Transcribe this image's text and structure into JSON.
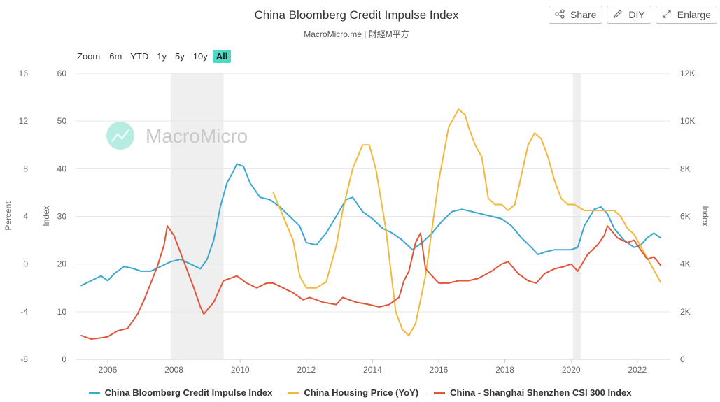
{
  "header": {
    "title": "China Bloomberg Credit Impulse Index",
    "subtitle": "MacroMicro.me | 財經M平方"
  },
  "buttons": {
    "share": "Share",
    "diy": "DIY",
    "enlarge": "Enlarge"
  },
  "zoom": {
    "label": "Zoom",
    "options": [
      "6m",
      "YTD",
      "1y",
      "5y",
      "10y",
      "All"
    ],
    "active": "All"
  },
  "watermark": "MacroMicro",
  "colors": {
    "credit": "#3aa8cf",
    "housing": "#f2b83b",
    "csi": "#e2553a",
    "recession": "#efefef",
    "watermark_icon": "#5ed6c0"
  },
  "chart_data": {
    "type": "line",
    "x_ticks": [
      "2006",
      "2008",
      "2010",
      "2012",
      "2014",
      "2016",
      "2018",
      "2020",
      "2022"
    ],
    "axes": {
      "percent": {
        "label": "Percent",
        "ticks": [
          "16",
          "12",
          "8",
          "4",
          "0",
          "-4",
          "-8"
        ],
        "range": [
          -8,
          16
        ]
      },
      "index_left": {
        "label": "Index",
        "ticks": [
          "60",
          "50",
          "40",
          "30",
          "20",
          "10",
          "0"
        ],
        "range": [
          0,
          60
        ]
      },
      "index_right": {
        "label": "Index",
        "ticks": [
          "12K",
          "10K",
          "8K",
          "6K",
          "4K",
          "2K",
          "0"
        ],
        "range": [
          0,
          12000
        ]
      }
    },
    "shaded_periods": [
      [
        2007.9,
        2009.5
      ],
      [
        2020.05,
        2020.3
      ]
    ],
    "series": [
      {
        "name": "China Bloomberg Credit Impulse Index",
        "axis": "index_left",
        "color": "#3aa8cf",
        "x": [
          2005.2,
          2005.5,
          2005.8,
          2006.0,
          2006.2,
          2006.5,
          2006.8,
          2007.0,
          2007.3,
          2007.6,
          2007.9,
          2008.2,
          2008.5,
          2008.8,
          2009.0,
          2009.2,
          2009.4,
          2009.6,
          2009.8,
          2009.9,
          2010.1,
          2010.3,
          2010.6,
          2010.9,
          2011.2,
          2011.5,
          2011.8,
          2012.0,
          2012.3,
          2012.6,
          2012.9,
          2013.2,
          2013.4,
          2013.7,
          2014.0,
          2014.3,
          2014.6,
          2014.9,
          2015.2,
          2015.5,
          2015.8,
          2016.1,
          2016.4,
          2016.7,
          2017.0,
          2017.3,
          2017.6,
          2017.9,
          2018.2,
          2018.5,
          2018.8,
          2019.0,
          2019.2,
          2019.5,
          2019.8,
          2020.0,
          2020.2,
          2020.4,
          2020.7,
          2020.9,
          2021.1,
          2021.3,
          2021.6,
          2021.9,
          2022.1,
          2022.3,
          2022.5,
          2022.7
        ],
        "y": [
          15.5,
          16.5,
          17.5,
          16.5,
          18.0,
          19.5,
          19.0,
          18.5,
          18.5,
          19.5,
          20.5,
          21.0,
          20.0,
          19.0,
          21.0,
          25.0,
          32.0,
          37.0,
          39.5,
          41.0,
          40.5,
          37.0,
          34.0,
          33.5,
          32.0,
          30.0,
          28.0,
          24.5,
          24.0,
          26.5,
          30.0,
          33.5,
          34.0,
          31.0,
          29.5,
          27.5,
          26.5,
          25.0,
          23.0,
          24.5,
          26.5,
          29.0,
          31.0,
          31.5,
          31.0,
          30.5,
          30.0,
          29.5,
          28.0,
          25.5,
          23.5,
          22.0,
          22.5,
          23.0,
          23.0,
          23.0,
          23.5,
          28.0,
          31.5,
          32.0,
          30.5,
          27.5,
          25.0,
          23.5,
          24.0,
          25.5,
          26.5,
          25.5
        ]
      },
      {
        "name": "China Housing Price (YoY)",
        "axis": "percent",
        "color": "#f2b83b",
        "x": [
          2011.0,
          2011.3,
          2011.6,
          2011.8,
          2012.0,
          2012.3,
          2012.6,
          2012.9,
          2013.1,
          2013.4,
          2013.7,
          2013.9,
          2014.1,
          2014.4,
          2014.7,
          2014.9,
          2015.1,
          2015.3,
          2015.6,
          2015.8,
          2016.0,
          2016.3,
          2016.6,
          2016.8,
          2016.9,
          2017.1,
          2017.3,
          2017.5,
          2017.7,
          2017.9,
          2018.1,
          2018.3,
          2018.5,
          2018.7,
          2018.9,
          2019.1,
          2019.3,
          2019.5,
          2019.7,
          2019.9,
          2020.1,
          2020.4,
          2020.7,
          2020.9,
          2021.1,
          2021.3,
          2021.5,
          2021.7,
          2021.9,
          2022.1,
          2022.3,
          2022.5,
          2022.7
        ],
        "y": [
          6.0,
          4.0,
          2.0,
          -1.0,
          -2.0,
          -2.0,
          -1.5,
          1.5,
          4.5,
          8.0,
          10.0,
          10.0,
          8.0,
          3.0,
          -4.0,
          -5.5,
          -6.0,
          -5.0,
          -1.0,
          3.0,
          7.0,
          11.5,
          13.0,
          12.5,
          11.5,
          10.0,
          9.0,
          5.5,
          5.0,
          5.0,
          4.5,
          5.0,
          7.5,
          10.0,
          11.0,
          10.5,
          9.0,
          7.0,
          5.5,
          5.0,
          5.0,
          4.5,
          4.5,
          4.5,
          4.5,
          4.5,
          4.0,
          3.0,
          2.5,
          1.5,
          0.5,
          -0.5,
          -1.5
        ]
      },
      {
        "name": "China - Shanghai Shenzhen CSI 300 Index",
        "axis": "index_right",
        "color": "#e2553a",
        "x": [
          2005.2,
          2005.5,
          2005.8,
          2006.0,
          2006.3,
          2006.6,
          2006.9,
          2007.1,
          2007.3,
          2007.5,
          2007.7,
          2007.8,
          2008.0,
          2008.3,
          2008.6,
          2008.8,
          2008.9,
          2009.2,
          2009.5,
          2009.7,
          2009.9,
          2010.2,
          2010.5,
          2010.8,
          2011.0,
          2011.3,
          2011.6,
          2011.9,
          2012.1,
          2012.5,
          2012.9,
          2013.1,
          2013.5,
          2013.9,
          2014.2,
          2014.5,
          2014.8,
          2014.95,
          2015.1,
          2015.3,
          2015.45,
          2015.6,
          2015.8,
          2016.0,
          2016.3,
          2016.6,
          2016.9,
          2017.2,
          2017.6,
          2017.9,
          2018.1,
          2018.4,
          2018.7,
          2018.95,
          2019.2,
          2019.5,
          2019.8,
          2020.0,
          2020.2,
          2020.5,
          2020.8,
          2021.0,
          2021.1,
          2021.4,
          2021.7,
          2021.9,
          2022.1,
          2022.3,
          2022.5,
          2022.7
        ],
        "y": [
          1000,
          850,
          900,
          950,
          1200,
          1300,
          1900,
          2500,
          3200,
          3900,
          4800,
          5600,
          5200,
          4100,
          3000,
          2200,
          1900,
          2400,
          3300,
          3400,
          3500,
          3200,
          3000,
          3200,
          3200,
          3000,
          2800,
          2500,
          2600,
          2400,
          2300,
          2600,
          2400,
          2300,
          2200,
          2300,
          2600,
          3300,
          3700,
          4900,
          5300,
          3800,
          3500,
          3200,
          3200,
          3300,
          3300,
          3400,
          3700,
          4000,
          4100,
          3600,
          3300,
          3200,
          3600,
          3800,
          3900,
          4000,
          3700,
          4400,
          4800,
          5200,
          5600,
          5100,
          4900,
          5000,
          4600,
          4200,
          4300,
          3950
        ]
      }
    ]
  }
}
